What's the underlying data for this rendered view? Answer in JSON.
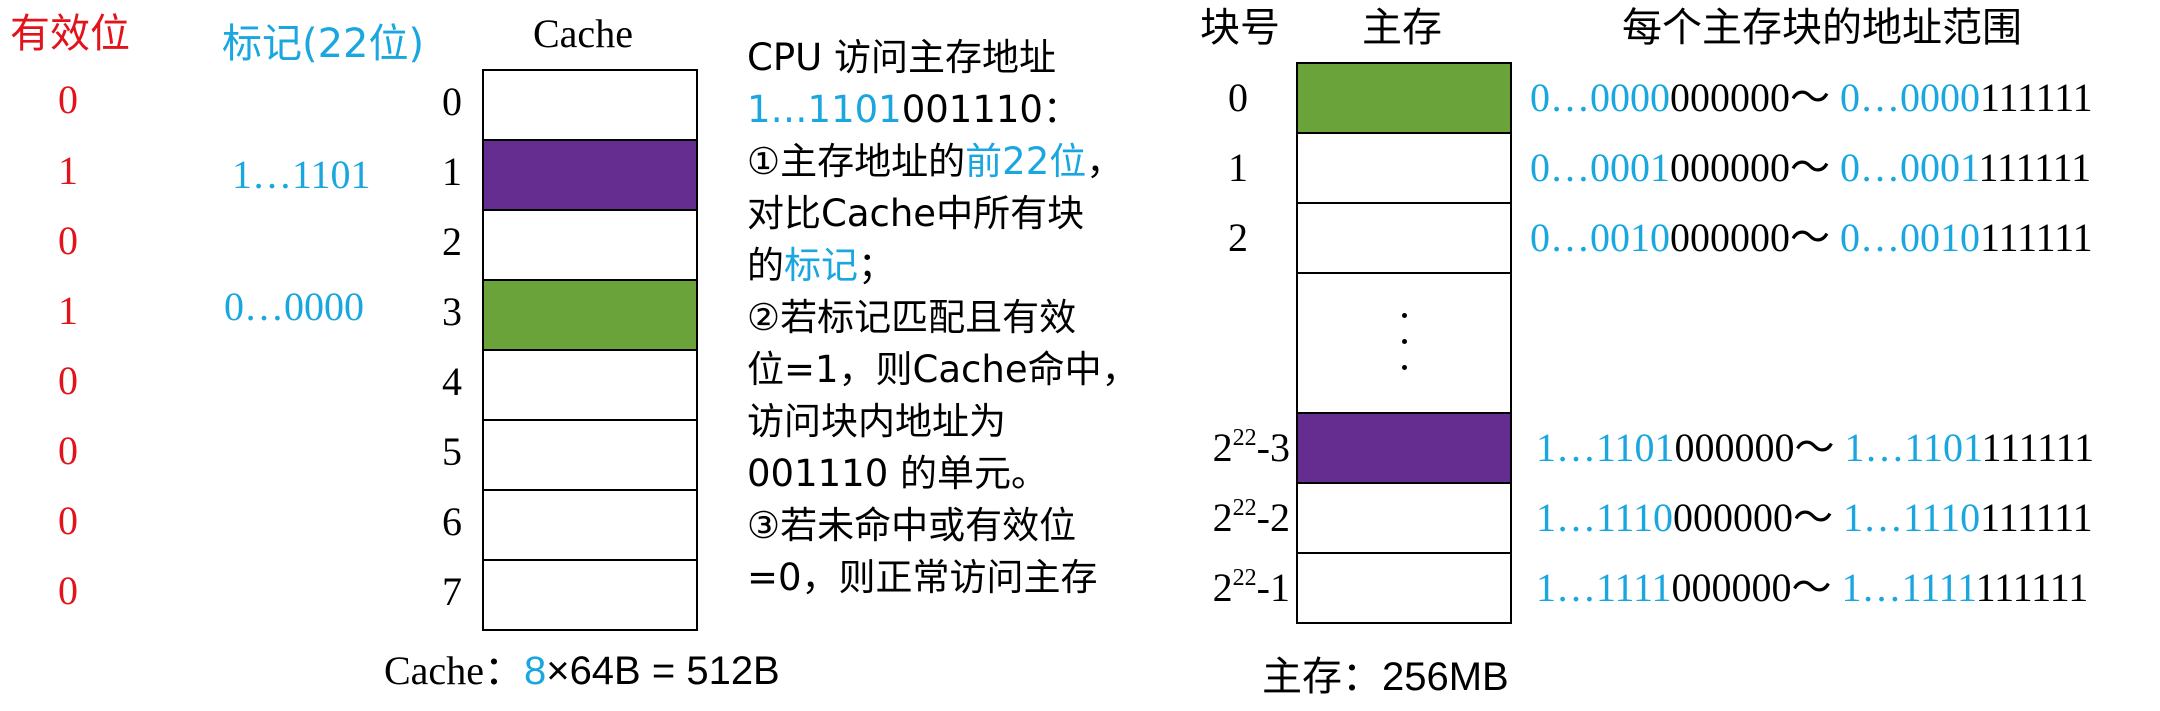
{
  "colors": {
    "red": "#e3131b",
    "blue": "#1aa7df",
    "purple": "#662d91",
    "green": "#6aa33a"
  },
  "cache": {
    "valid_header": "有效位",
    "tag_header": "标记(22位)",
    "title": "Cache",
    "valid_bits": [
      "0",
      "1",
      "0",
      "1",
      "0",
      "0",
      "0",
      "0"
    ],
    "tags": [
      "",
      "1…1101",
      "",
      "0…0000",
      "",
      "",
      "",
      ""
    ],
    "line_numbers": [
      "0",
      "1",
      "2",
      "3",
      "4",
      "5",
      "6",
      "7"
    ],
    "line_fills": [
      "white",
      "purple",
      "white",
      "green",
      "white",
      "white",
      "white",
      "white"
    ],
    "size_prefix": "Cache：",
    "size_count": "8",
    "size_rest": "×64B = 512B"
  },
  "explanation": {
    "title": "CPU 访问主存地址",
    "addr_tag": "1…1101",
    "addr_offset": "001110：",
    "step1_a": "①主存地址的",
    "step1_b": "前22位",
    "step1_c": "，",
    "step1_d": "对比Cache中所有块",
    "step1_e": "的",
    "step1_f": "标记",
    "step1_g": "；",
    "step2_a": "②若标记匹配且有效",
    "step2_b": "位=1，则Cache命中，",
    "step2_c": "访问块内地址为",
    "step2_d": "001110 的单元。",
    "step3_a": "③若未命中或有效位",
    "step3_b": "=0，则正常访问主存"
  },
  "memory": {
    "block_header": "块号",
    "memory_header": "主存",
    "range_header": "每个主存块的地址范围",
    "size_label": "主存：256MB",
    "tilde": "～",
    "rows": [
      {
        "num": "0",
        "fill": "green",
        "start_tag": "0…0000",
        "start_off": "000000",
        "end_tag": "0…0000",
        "end_off": "111111"
      },
      {
        "num": "1",
        "fill": "white",
        "start_tag": "0…0001",
        "start_off": "000000",
        "end_tag": "0…0001",
        "end_off": "111111"
      },
      {
        "num": "2",
        "fill": "white",
        "start_tag": "0…0010",
        "start_off": "000000",
        "end_tag": "0…0010",
        "end_off": "111111"
      },
      {
        "base": "2",
        "exp": "22",
        "suffix": "-3",
        "fill": "purple",
        "start_tag": "1…1101",
        "start_off": "000000",
        "end_tag": "1…1101",
        "end_off": "111111"
      },
      {
        "base": "2",
        "exp": "22",
        "suffix": "-2",
        "fill": "white",
        "start_tag": "1…1110",
        "start_off": "000000",
        "end_tag": "1…1110",
        "end_off": "111111"
      },
      {
        "base": "2",
        "exp": "22",
        "suffix": "-1",
        "fill": "white",
        "start_tag": "1…1111",
        "start_off": "000000",
        "end_tag": "1…1111",
        "end_off": "111111"
      }
    ]
  }
}
